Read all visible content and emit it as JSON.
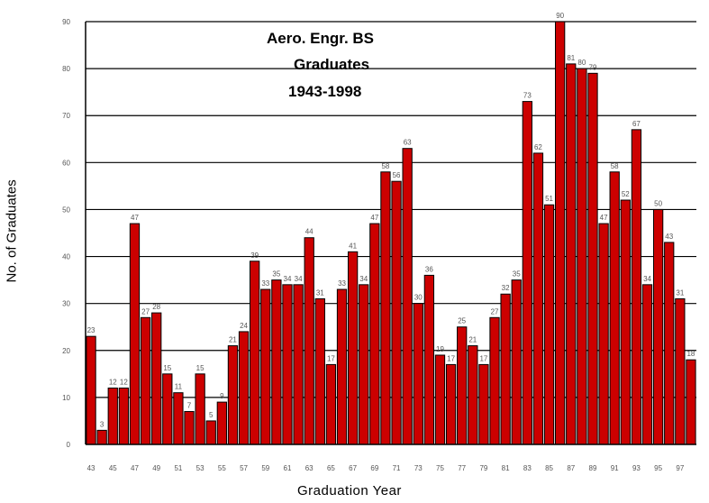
{
  "chart_data": {
    "type": "bar",
    "title_lines": [
      "Aero. Engr. BS",
      "Graduates",
      "1943-1998"
    ],
    "xlabel": "Graduation Year",
    "ylabel": "No. of Graduates",
    "ylim": [
      0,
      90
    ],
    "yticks": [
      0,
      10,
      20,
      30,
      40,
      50,
      60,
      70,
      80,
      90
    ],
    "grid": true,
    "bar_color": "#cc0000",
    "categories": [
      43,
      44,
      45,
      46,
      47,
      48,
      49,
      50,
      51,
      52,
      53,
      54,
      55,
      56,
      57,
      58,
      59,
      60,
      61,
      62,
      63,
      64,
      65,
      66,
      67,
      68,
      69,
      70,
      71,
      72,
      73,
      74,
      75,
      76,
      77,
      78,
      79,
      80,
      81,
      82,
      83,
      84,
      85,
      86,
      87,
      88,
      89,
      90,
      91,
      92,
      93,
      94,
      95,
      96,
      97,
      98
    ],
    "x_tick_labels": [
      "43",
      "",
      "45",
      "",
      "47",
      "",
      "49",
      "",
      "51",
      "",
      "53",
      "",
      "55",
      "",
      "57",
      "",
      "59",
      "",
      "61",
      "",
      "63",
      "",
      "65",
      "",
      "67",
      "",
      "69",
      "",
      "71",
      "",
      "73",
      "",
      "75",
      "",
      "77",
      "",
      "79",
      "",
      "81",
      "",
      "83",
      "",
      "85",
      "",
      "87",
      "",
      "89",
      "",
      "91",
      "",
      "93",
      "",
      "95",
      "",
      "97",
      ""
    ],
    "values": [
      23,
      3,
      12,
      12,
      47,
      27,
      28,
      15,
      11,
      7,
      15,
      5,
      9,
      21,
      24,
      39,
      33,
      35,
      34,
      34,
      44,
      31,
      17,
      33,
      41,
      34,
      47,
      58,
      56,
      63,
      30,
      36,
      19,
      17,
      25,
      21,
      17,
      27,
      32,
      35,
      73,
      62,
      51,
      90,
      81,
      80,
      79,
      47,
      58,
      52,
      67,
      34,
      50,
      43,
      31,
      18
    ]
  }
}
